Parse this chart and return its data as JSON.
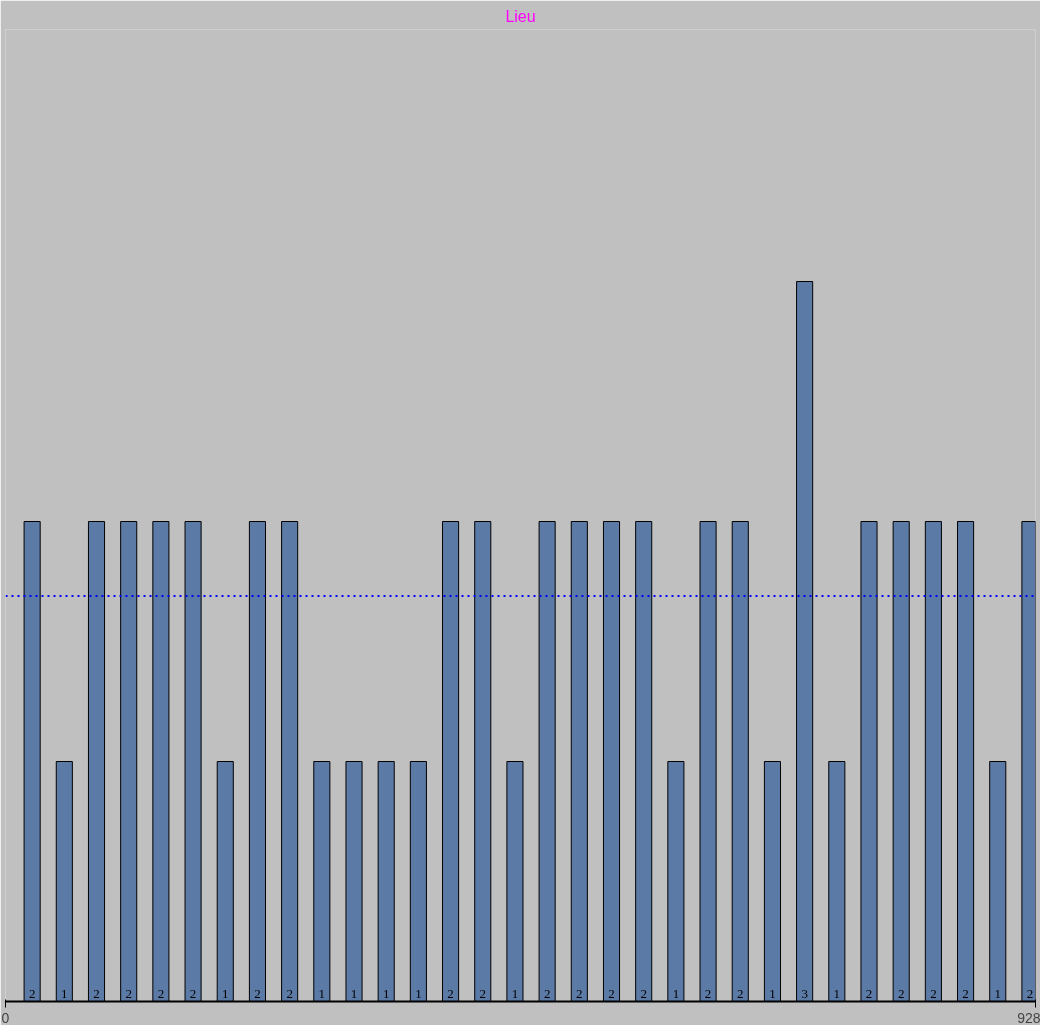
{
  "chart_data": {
    "type": "bar",
    "title": "Lieu",
    "x": [
      24,
      53,
      82,
      111,
      140,
      169,
      198,
      227,
      256,
      285,
      314,
      343,
      372,
      401,
      430,
      459,
      488,
      517,
      546,
      575,
      604,
      633,
      662,
      691,
      720,
      749,
      778,
      807,
      836,
      865,
      894,
      923
    ],
    "values": [
      2,
      1,
      2,
      2,
      2,
      2,
      1,
      2,
      2,
      1,
      1,
      1,
      1,
      2,
      2,
      1,
      2,
      2,
      2,
      2,
      1,
      2,
      2,
      1,
      3,
      1,
      2,
      2,
      2,
      2,
      1,
      2
    ],
    "color": "#5b7aa6",
    "data_labels": true,
    "xlim": [
      0,
      928
    ],
    "xticks": [
      0,
      928
    ],
    "tick_labels": "x",
    "grid": false,
    "ref_lines": [
      {
        "axis": "y",
        "value": 1.69,
        "color": "#0000ff",
        "line_style": "dotted"
      }
    ]
  }
}
